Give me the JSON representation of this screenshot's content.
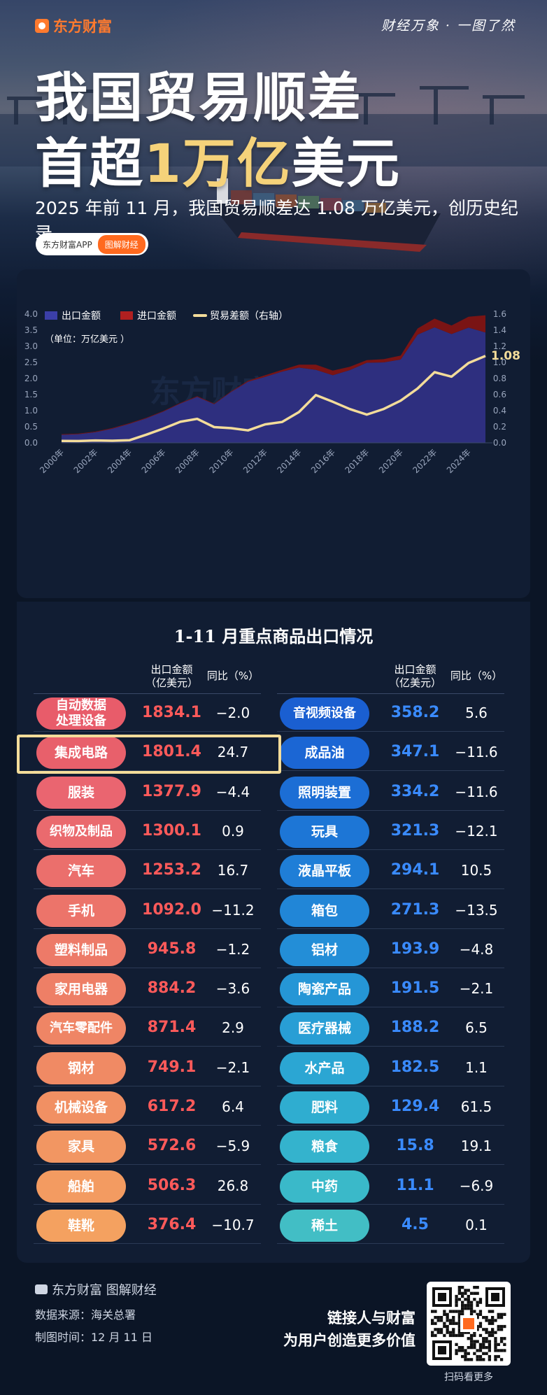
{
  "header": {
    "brand": "东方财富",
    "slogan": "财经万象 · 一图了然",
    "title_line1": "我国贸易顺差",
    "title_line2_pre": "首超",
    "title_line2_hl": "1万亿",
    "title_line2_post": "美元",
    "subtitle": "2025 年前 11 月，我国贸易顺差达 1.08 万亿美元，创历史纪录。",
    "app_label": "东方财富APP",
    "category_label": "图解财经"
  },
  "chart_data": {
    "type": "area",
    "unit_note": "（单位：万亿美元 ）",
    "x": [
      2000,
      2001,
      2002,
      2003,
      2004,
      2005,
      2006,
      2007,
      2008,
      2009,
      2010,
      2011,
      2012,
      2013,
      2014,
      2015,
      2016,
      2017,
      2018,
      2019,
      2020,
      2021,
      2022,
      2023,
      2024,
      2025
    ],
    "x_tick_labels": [
      "2000年",
      "2002年",
      "2004年",
      "2006年",
      "2008年",
      "2010年",
      "2012年",
      "2014年",
      "2016年",
      "2018年",
      "2020年",
      "2022年",
      "2024年"
    ],
    "left_axis": {
      "min": 0,
      "max": 4.0,
      "ticks": [
        "0.0",
        "0.5",
        "1.0",
        "1.5",
        "2.0",
        "2.5",
        "3.0",
        "3.5",
        "4.0"
      ]
    },
    "right_axis": {
      "min": 0,
      "max": 1.6,
      "ticks": [
        "0.0",
        "0.2",
        "0.4",
        "0.6",
        "0.8",
        "1.0",
        "1.2",
        "1.4",
        "1.6"
      ]
    },
    "series": [
      {
        "name": "出口金额",
        "axis": "left",
        "color": "#2e2f7f",
        "values": [
          0.25,
          0.27,
          0.33,
          0.44,
          0.59,
          0.76,
          0.97,
          1.22,
          1.43,
          1.2,
          1.58,
          1.9,
          2.05,
          2.21,
          2.34,
          2.27,
          2.1,
          2.26,
          2.49,
          2.5,
          2.59,
          3.36,
          3.59,
          3.38,
          3.58,
          3.43
        ]
      },
      {
        "name": "进口金额",
        "axis": "left",
        "color": "#7a1414",
        "values": [
          0.26,
          0.28,
          0.35,
          0.47,
          0.6,
          0.77,
          0.98,
          1.2,
          1.43,
          1.19,
          1.55,
          1.84,
          1.95,
          2.1,
          2.16,
          1.95,
          1.81,
          2.05,
          2.33,
          2.3,
          2.35,
          2.97,
          3.05,
          2.85,
          2.9,
          2.36
        ]
      },
      {
        "name": "贸易差额（右轴）",
        "axis": "right",
        "color": "#f3dc9a",
        "values": [
          0.024,
          0.023,
          0.03,
          0.026,
          0.032,
          0.102,
          0.177,
          0.262,
          0.298,
          0.196,
          0.183,
          0.155,
          0.23,
          0.259,
          0.383,
          0.594,
          0.51,
          0.42,
          0.351,
          0.421,
          0.524,
          0.676,
          0.878,
          0.823,
          0.992,
          1.08
        ]
      }
    ],
    "end_label": "1.08",
    "watermark": "东方财富",
    "legend_position": "top-left",
    "grid": false
  },
  "table": {
    "title": "1-11 月重点商品出口情况",
    "col_amount": "出口金额",
    "col_amount_unit": "（亿美元）",
    "col_yoy": "同比（%）",
    "left": [
      {
        "name": "自动数据\n处理设备",
        "value": "1834.1",
        "yoy": "−2.0"
      },
      {
        "name": "集成电路",
        "value": "1801.4",
        "yoy": "24.7"
      },
      {
        "name": "服装",
        "value": "1377.9",
        "yoy": "−4.4"
      },
      {
        "name": "织物及制品",
        "value": "1300.1",
        "yoy": "0.9"
      },
      {
        "name": "汽车",
        "value": "1253.2",
        "yoy": "16.7"
      },
      {
        "name": "手机",
        "value": "1092.0",
        "yoy": "−11.2"
      },
      {
        "name": "塑料制品",
        "value": "945.8",
        "yoy": "−1.2"
      },
      {
        "name": "家用电器",
        "value": "884.2",
        "yoy": "−3.6"
      },
      {
        "name": "汽车零配件",
        "value": "871.4",
        "yoy": "2.9"
      },
      {
        "name": "钢材",
        "value": "749.1",
        "yoy": "−2.1"
      },
      {
        "name": "机械设备",
        "value": "617.2",
        "yoy": "6.4"
      },
      {
        "name": "家具",
        "value": "572.6",
        "yoy": "−5.9"
      },
      {
        "name": "船舶",
        "value": "506.3",
        "yoy": "26.8"
      },
      {
        "name": "鞋靴",
        "value": "376.4",
        "yoy": "−10.7"
      }
    ],
    "right": [
      {
        "name": "音视频设备",
        "value": "358.2",
        "yoy": "5.6"
      },
      {
        "name": "成品油",
        "value": "347.1",
        "yoy": "−11.6"
      },
      {
        "name": "照明装置",
        "value": "334.2",
        "yoy": "−11.6"
      },
      {
        "name": "玩具",
        "value": "321.3",
        "yoy": "−12.1"
      },
      {
        "name": "液晶平板",
        "value": "294.1",
        "yoy": "10.5"
      },
      {
        "name": "箱包",
        "value": "271.3",
        "yoy": "−13.5"
      },
      {
        "name": "铝材",
        "value": "193.9",
        "yoy": "−4.8"
      },
      {
        "name": "陶瓷产品",
        "value": "191.5",
        "yoy": "−2.1"
      },
      {
        "name": "医疗器械",
        "value": "188.2",
        "yoy": "6.5"
      },
      {
        "name": "水产品",
        "value": "182.5",
        "yoy": "1.1"
      },
      {
        "name": "肥料",
        "value": "129.4",
        "yoy": "61.5"
      },
      {
        "name": "粮食",
        "value": "15.8",
        "yoy": "19.1"
      },
      {
        "name": "中药",
        "value": "11.1",
        "yoy": "−6.9"
      },
      {
        "name": "稀土",
        "value": "4.5",
        "yoy": "0.1"
      }
    ],
    "left_pill_colors": [
      "#e85c6a",
      "#e8606b",
      "#ea6570",
      "#ea6a6e",
      "#eb6f6c",
      "#ec746a",
      "#ed7a68",
      "#ee7f66",
      "#ef8565",
      "#f08a64",
      "#f19063",
      "#f29662",
      "#f39b61",
      "#f4a160"
    ],
    "right_pill_colors": [
      "#1a5fd1",
      "#1b66d4",
      "#1c6ed5",
      "#1d76d6",
      "#1f7ed7",
      "#2186d7",
      "#238ed7",
      "#2596d6",
      "#289ed5",
      "#2ba6d3",
      "#2fadd0",
      "#34b3cd",
      "#3ab9c9",
      "#42bec5"
    ],
    "highlight_color": "#f3dc9a"
  },
  "footer": {
    "brand": "东方财富 图解财经",
    "source": "数据来源：海关总署",
    "made_time": "制图时间：12 月 11 日",
    "tagline1": "链接人与财富",
    "tagline2": "为用户创造更多价值",
    "qr_caption": "扫码看更多"
  }
}
